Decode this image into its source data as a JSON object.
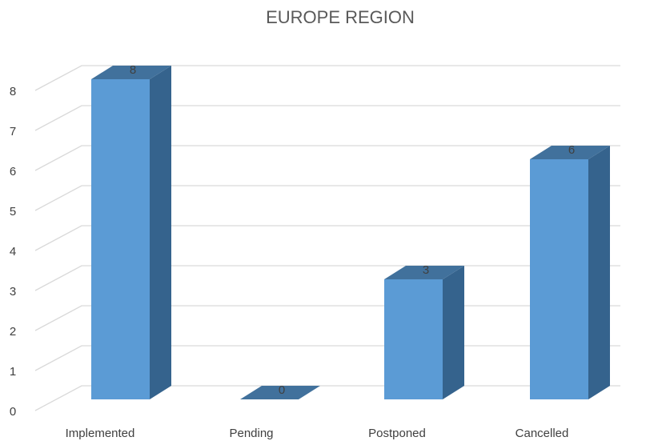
{
  "chart_data": {
    "type": "bar",
    "title": "EUROPE REGION",
    "categories": [
      "Implemented",
      "Pending",
      "Postponed",
      "Cancelled"
    ],
    "series": [
      {
        "values": [
          8,
          0,
          3,
          6
        ]
      }
    ],
    "data_labels": [
      "8",
      "0",
      "3",
      "6"
    ],
    "y_ticks": [
      "0",
      "1",
      "2",
      "3",
      "4",
      "5",
      "6",
      "7",
      "8"
    ],
    "ylim": [
      0,
      8
    ],
    "grid": true,
    "legend": "none",
    "style": "3d-column",
    "colors": {
      "front": "#5B9BD5",
      "top": "#41719C",
      "side": "#35638D",
      "grid": "#D9D9D9",
      "text": "#404040",
      "title": "#595959"
    }
  }
}
